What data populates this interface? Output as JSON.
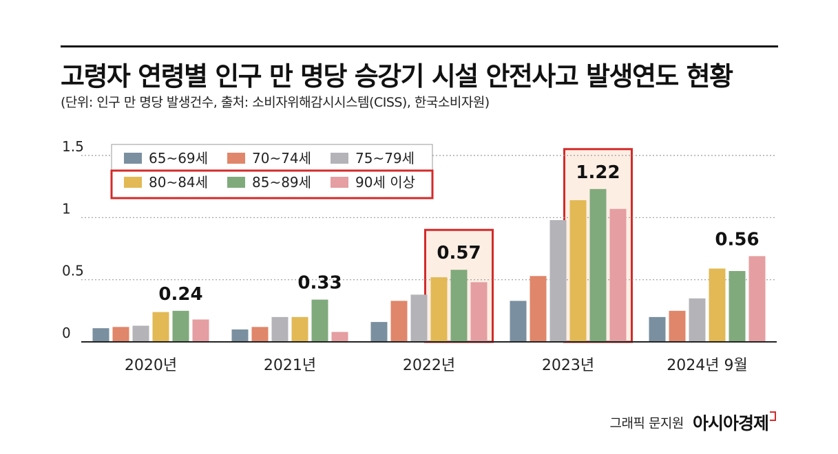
{
  "header": {
    "title": "고령자 연령별 인구 만 명당 승강기 시설 안전사고 발생연도 현황",
    "subtitle": "(단위: 인구 만 명당 발생건수, 출처: 소비자위해감시시스템(CISS), 한국소비자원)"
  },
  "footer": {
    "author": "그래픽 문지원",
    "brand": "아시아경제"
  },
  "colors": {
    "gridline": "#999999",
    "axis": "#222222",
    "highlight_border": "#d42a2a",
    "highlight_fill": "#fdeee4"
  },
  "chart_data": {
    "type": "bar",
    "categories": [
      "2020년",
      "2021년",
      "2022년",
      "2023년",
      "2024년 9월"
    ],
    "series": [
      {
        "name": "65~69세",
        "color": "#7a8f9f",
        "values": [
          0.11,
          0.1,
          0.16,
          0.33,
          0.2
        ]
      },
      {
        "name": "70~74세",
        "color": "#e0866a",
        "values": [
          0.12,
          0.12,
          0.33,
          0.53,
          0.25
        ]
      },
      {
        "name": "75~79세",
        "color": "#b4b3b8",
        "values": [
          0.13,
          0.2,
          0.38,
          0.98,
          0.35
        ]
      },
      {
        "name": "80~84세",
        "color": "#e2b955",
        "values": [
          0.24,
          0.2,
          0.52,
          1.14,
          0.59
        ]
      },
      {
        "name": "85~89세",
        "color": "#80aa7c",
        "values": [
          0.25,
          0.34,
          0.58,
          1.23,
          0.57
        ]
      },
      {
        "name": "90세 이상",
        "color": "#e59ea1",
        "values": [
          0.18,
          0.08,
          0.48,
          1.07,
          0.69
        ]
      }
    ],
    "annotations": [
      {
        "category": "2020년",
        "label": "0.24",
        "highlight": false
      },
      {
        "category": "2021년",
        "label": "0.33",
        "highlight": false
      },
      {
        "category": "2022년",
        "label": "0.57",
        "highlight": true
      },
      {
        "category": "2023년",
        "label": "1.22",
        "highlight": true
      },
      {
        "category": "2024년 9월",
        "label": "0.56",
        "highlight": false
      }
    ],
    "ylim": [
      0,
      1.5
    ],
    "yticks": [
      0,
      0.5,
      1,
      1.5
    ],
    "ytick_labels": [
      "0",
      "0.5",
      "1",
      "1.5"
    ],
    "grid": true,
    "legend": {
      "position": "top-left",
      "highlighted_series": [
        "80~84세",
        "85~89세",
        "90세 이상"
      ]
    }
  }
}
